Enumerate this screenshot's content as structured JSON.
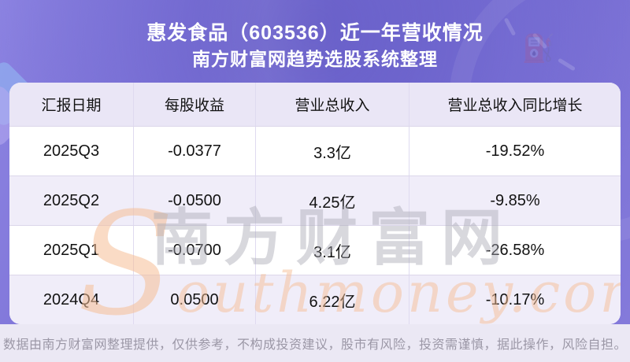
{
  "header": {
    "title_line1": "惠发食品（603536）近一年营收情况",
    "title_line2": "南方财富网趋势选股系统整理"
  },
  "table": {
    "columns": [
      "汇报日期",
      "每股收益",
      "营业总收入",
      "营业总收入同比增长"
    ],
    "rows": [
      [
        "2025Q3",
        "-0.0377",
        "3.3亿",
        "-19.52%"
      ],
      [
        "2025Q2",
        "-0.0500",
        "4.25亿",
        "-9.85%"
      ],
      [
        "2025Q1",
        "-0.0700",
        "3.1亿",
        "-26.58%"
      ],
      [
        "2024Q4",
        "0.0500",
        "6.22亿",
        "-10.17%"
      ]
    ]
  },
  "chart_data": {
    "type": "table",
    "title": "惠发食品（603536）近一年营收情况",
    "subtitle": "南方财富网趋势选股系统整理",
    "columns": [
      "汇报日期",
      "每股收益",
      "营业总收入",
      "营业总收入同比增长"
    ],
    "periods": [
      "2025Q3",
      "2025Q2",
      "2025Q1",
      "2024Q4"
    ],
    "eps": [
      -0.0377,
      -0.05,
      -0.07,
      0.05
    ],
    "total_revenue_yi": [
      3.3,
      4.25,
      3.1,
      6.22
    ],
    "revenue_yoy_growth_pct": [
      -19.52,
      -9.85,
      -26.58,
      -10.17
    ]
  },
  "watermark": {
    "en_first_letter": "S",
    "en_rest": "outhmoney.com",
    "cn": "南方财富网"
  },
  "footer": {
    "disclaimer": "数据由南方财富网整理提供，仅供参考，不构成投资建议，股市有风险，投资需谨慎，据此操作，风险自担。"
  },
  "colors": {
    "page_gradient_light": "#8d84e2",
    "page_gradient_dark": "#6f66ce",
    "table_header_bg": "#eae6f6",
    "row_alt_bg": "#f0edf9",
    "row_bg": "#ffffff",
    "grid_border": "#dcd7ea",
    "footer_bg": "#ebe8f4",
    "footer_text": "#9b97a6",
    "cell_text": "#121212",
    "watermark_orange": "rgba(246,190,150,0.55)",
    "watermark_gray": "rgba(168,168,180,0.45)"
  }
}
